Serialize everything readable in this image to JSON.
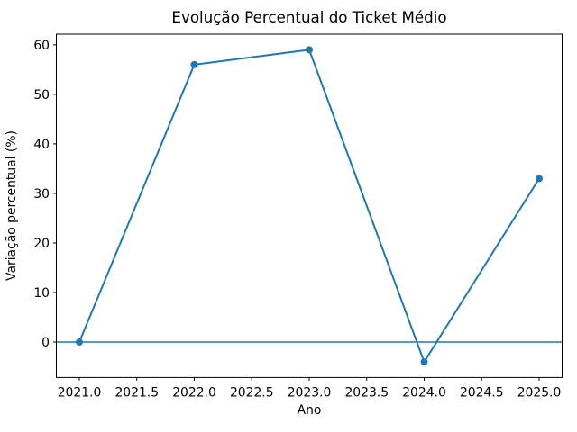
{
  "chart_data": {
    "type": "line",
    "title": "Evolução Percentual do Ticket Médio",
    "xlabel": "Ano",
    "ylabel": "Variação percentual (%)",
    "x": [
      2021,
      2022,
      2023,
      2024,
      2025
    ],
    "values": [
      0,
      56,
      59,
      -4,
      33
    ],
    "series_color": "#1f77b4",
    "marker": "circle",
    "axhline_y": 0,
    "xticks": {
      "values": [
        2021,
        2021.5,
        2022,
        2022.5,
        2023,
        2023.5,
        2024,
        2024.5,
        2025
      ],
      "labels": [
        "2021.0",
        "2021.5",
        "2022.0",
        "2022.5",
        "2023.0",
        "2023.5",
        "2024.0",
        "2024.5",
        "2025.0"
      ]
    },
    "yticks": {
      "values": [
        0,
        10,
        20,
        30,
        40,
        50,
        60
      ],
      "labels": [
        "0",
        "10",
        "20",
        "30",
        "40",
        "50",
        "60"
      ]
    },
    "xlim": [
      2020.8,
      2025.2
    ],
    "ylim": [
      -7.15,
      62.15
    ],
    "grid": false,
    "text_color": "#000000",
    "spine_color": "#000000",
    "background": "#ffffff"
  }
}
